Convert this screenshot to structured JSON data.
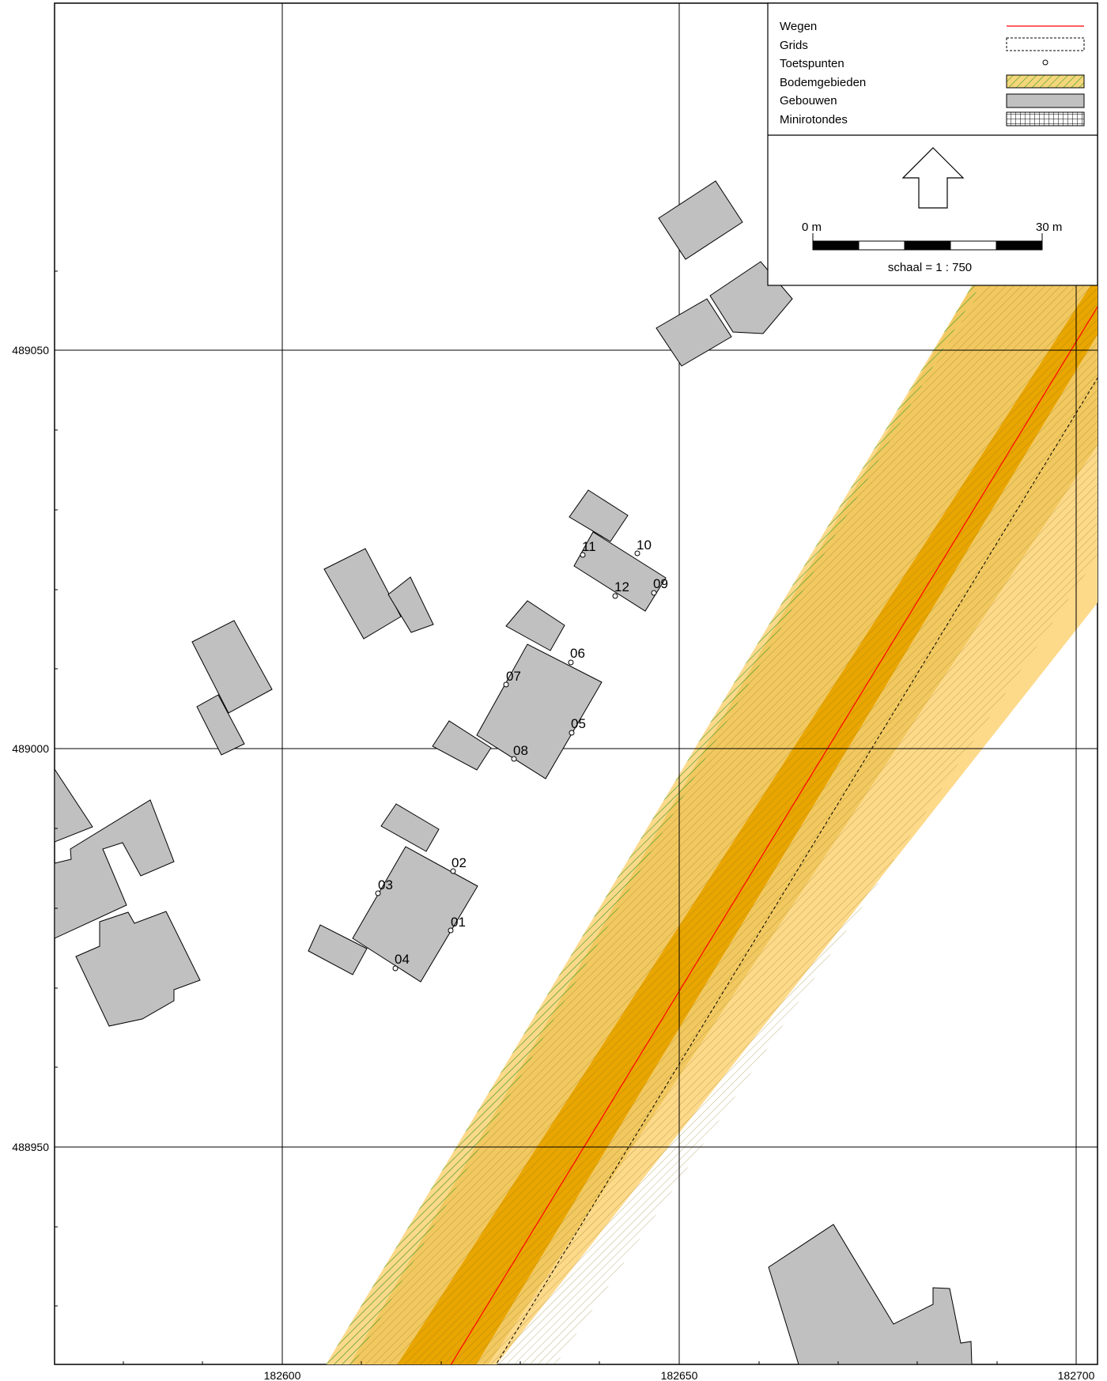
{
  "map": {
    "x_ticks": [
      "182600",
      "182650",
      "182700"
    ],
    "y_ticks": [
      "489050",
      "489000",
      "488950"
    ]
  },
  "legend": {
    "items": [
      {
        "label": "Wegen",
        "symbol": "red-line"
      },
      {
        "label": "Grids",
        "symbol": "dashed-box"
      },
      {
        "label": "Toetspunten",
        "symbol": "point"
      },
      {
        "label": "Bodemgebieden",
        "symbol": "green-hatch"
      },
      {
        "label": "Gebouwen",
        "symbol": "grey-fill"
      },
      {
        "label": "Minirotondes",
        "symbol": "grid-hatch"
      }
    ],
    "scale_start": "0 m",
    "scale_end": "30 m",
    "scale_text": "schaal = 1 : 750"
  },
  "points": [
    "01",
    "02",
    "03",
    "04",
    "05",
    "06",
    "07",
    "08",
    "09",
    "10",
    "11",
    "12"
  ],
  "colors": {
    "road_line": "#ff0000",
    "road_dark": "#f0a500",
    "road_light": "#f5d67a",
    "building": "#c0c0c0",
    "hatch": "#3aa02a"
  }
}
